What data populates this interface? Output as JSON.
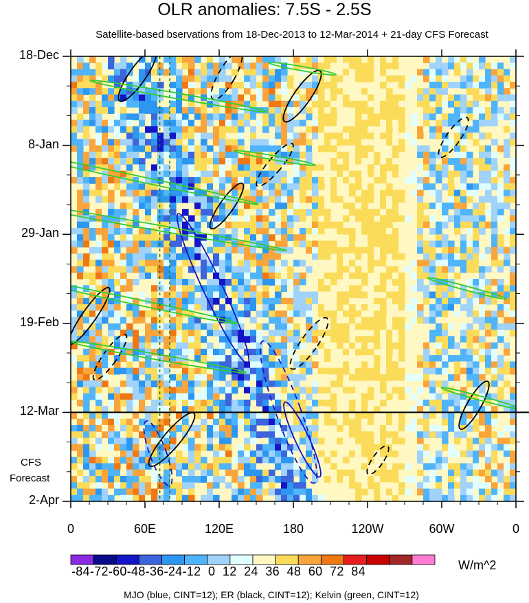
{
  "chart_data": {
    "type": "heatmap",
    "title": "OLR anomalies: 7.5S - 2.5S",
    "subtitle": "Satellite-based bservations from 18-Dec-2013 to 12-Mar-2014 + 21-day CFS Forecast",
    "x_tick_labels": [
      "0",
      "60E",
      "120E",
      "180",
      "120W",
      "60W",
      "0"
    ],
    "x_range": [
      0,
      360
    ],
    "y_tick_labels": [
      "18-Dec",
      "8-Jan",
      "29-Jan",
      "19-Feb",
      "12-Mar",
      "2-Apr"
    ],
    "y_range_days": [
      0,
      105
    ],
    "forecast_start_day": 84,
    "forecast_label": [
      "CFS",
      "Forecast"
    ],
    "colorbar": {
      "levels": [
        -84,
        -72,
        -60,
        -48,
        -36,
        -24,
        -12,
        0,
        12,
        24,
        36,
        48,
        60,
        72,
        84
      ],
      "label_text": "-84-72-60-48-36-24-12  0  12  24  36  48  60  72  84",
      "units": "W/m^2",
      "colors": [
        "#8a2be2",
        "#0a0a8c",
        "#1414c8",
        "#3c64dc",
        "#2d96f0",
        "#50b4fa",
        "#a0d2fa",
        "#e1ffff",
        "#fff8c3",
        "#fadc5a",
        "#f9a53c",
        "#f07814",
        "#e61e1e",
        "#c80000",
        "#a02828",
        "#ff7ad2"
      ]
    },
    "contours": "MJO (blue, CINT=12); ER (black, CINT=12); Kelvin (green, CINT=12)",
    "reference_lines_lon": [
      72,
      80
    ]
  }
}
